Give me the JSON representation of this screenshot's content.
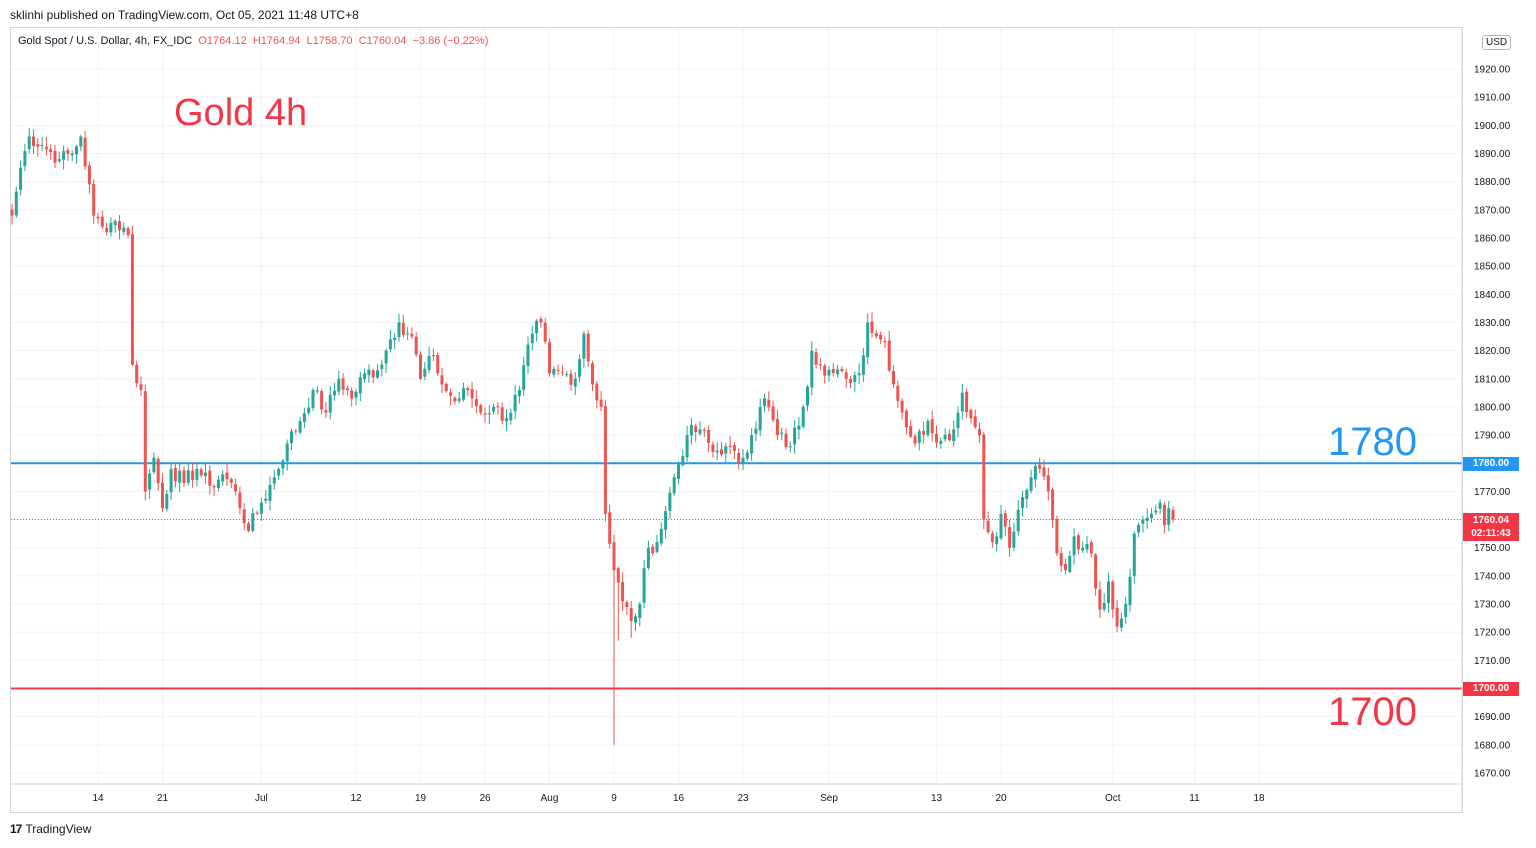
{
  "header": {
    "published": "sklinhi published on TradingView.com, Oct 05, 2021 11:48 UTC+8",
    "symbol": "Gold Spot / U.S. Dollar, 4h, FX_IDC",
    "open": "O1764.12",
    "high": "H1764.94",
    "low": "L1758.70",
    "close": "C1760.04",
    "change": "−3.86 (−0.22%)"
  },
  "currency_badge": "USD",
  "footer": {
    "brand": "TradingView"
  },
  "colors": {
    "up": "#26a69a",
    "down": "#ef5350",
    "resistance": "#2196f3",
    "support": "#f23645",
    "grid": "#f0f3fa"
  },
  "chart_data": {
    "type": "candlestick",
    "title": "Gold 4h",
    "ylim": [
      1665,
      1935
    ],
    "y_ticks": [
      "1920.00",
      "1910.00",
      "1900.00",
      "1890.00",
      "1880.00",
      "1870.00",
      "1860.00",
      "1850.00",
      "1840.00",
      "1830.00",
      "1820.00",
      "1810.00",
      "1800.00",
      "1790.00",
      "1780.00",
      "1770.00",
      "1760.00",
      "1750.00",
      "1740.00",
      "1730.00",
      "1720.00",
      "1710.00",
      "1700.00",
      "1690.00",
      "1680.00",
      "1670.00"
    ],
    "x_ticks": [
      {
        "label": "14",
        "bar": 20
      },
      {
        "label": "21",
        "bar": 35
      },
      {
        "label": "Jul",
        "bar": 58
      },
      {
        "label": "12",
        "bar": 80
      },
      {
        "label": "19",
        "bar": 95
      },
      {
        "label": "26",
        "bar": 110
      },
      {
        "label": "Aug",
        "bar": 125
      },
      {
        "label": "9",
        "bar": 140
      },
      {
        "label": "16",
        "bar": 155
      },
      {
        "label": "23",
        "bar": 170
      },
      {
        "label": "Sep",
        "bar": 190
      },
      {
        "label": "13",
        "bar": 215
      },
      {
        "label": "20",
        "bar": 230
      },
      {
        "label": "Oct",
        "bar": 256
      },
      {
        "label": "11",
        "bar": 275
      },
      {
        "label": "18",
        "bar": 290
      }
    ],
    "anchors": [
      [
        0,
        1868
      ],
      [
        2,
        1885
      ],
      [
        4,
        1896
      ],
      [
        7,
        1893
      ],
      [
        11,
        1888
      ],
      [
        14,
        1890
      ],
      [
        16,
        1896
      ],
      [
        19,
        1868
      ],
      [
        21,
        1864
      ],
      [
        24,
        1866
      ],
      [
        27,
        1861
      ],
      [
        28,
        1815
      ],
      [
        30,
        1806
      ],
      [
        31,
        1770
      ],
      [
        33,
        1782
      ],
      [
        35,
        1764
      ],
      [
        37,
        1778
      ],
      [
        40,
        1773
      ],
      [
        43,
        1778
      ],
      [
        46,
        1772
      ],
      [
        49,
        1776
      ],
      [
        52,
        1770
      ],
      [
        55,
        1756
      ],
      [
        58,
        1766
      ],
      [
        61,
        1775
      ],
      [
        64,
        1787
      ],
      [
        67,
        1795
      ],
      [
        70,
        1806
      ],
      [
        73,
        1798
      ],
      [
        76,
        1810
      ],
      [
        79,
        1803
      ],
      [
        82,
        1812
      ],
      [
        85,
        1813
      ],
      [
        88,
        1824
      ],
      [
        90,
        1830
      ],
      [
        93,
        1825
      ],
      [
        95,
        1810
      ],
      [
        98,
        1818
      ],
      [
        100,
        1808
      ],
      [
        103,
        1802
      ],
      [
        106,
        1806
      ],
      [
        109,
        1798
      ],
      [
        112,
        1800
      ],
      [
        115,
        1796
      ],
      [
        118,
        1806
      ],
      [
        121,
        1826
      ],
      [
        123,
        1830
      ],
      [
        125,
        1812
      ],
      [
        128,
        1812
      ],
      [
        131,
        1810
      ],
      [
        133,
        1826
      ],
      [
        135,
        1808
      ],
      [
        137,
        1800
      ],
      [
        138,
        1762
      ],
      [
        140,
        1742
      ],
      [
        142,
        1731
      ],
      [
        144,
        1724
      ],
      [
        146,
        1730
      ],
      [
        148,
        1750
      ],
      [
        150,
        1752
      ],
      [
        152,
        1763
      ],
      [
        154,
        1775
      ],
      [
        157,
        1790
      ],
      [
        160,
        1792
      ],
      [
        163,
        1784
      ],
      [
        166,
        1786
      ],
      [
        169,
        1780
      ],
      [
        172,
        1790
      ],
      [
        175,
        1803
      ],
      [
        178,
        1790
      ],
      [
        181,
        1786
      ],
      [
        184,
        1800
      ],
      [
        186,
        1820
      ],
      [
        188,
        1815
      ],
      [
        191,
        1812
      ],
      [
        194,
        1810
      ],
      [
        197,
        1812
      ],
      [
        199,
        1830
      ],
      [
        201,
        1825
      ],
      [
        203,
        1823
      ],
      [
        205,
        1808
      ],
      [
        207,
        1798
      ],
      [
        210,
        1787
      ],
      [
        213,
        1795
      ],
      [
        216,
        1788
      ],
      [
        219,
        1792
      ],
      [
        221,
        1805
      ],
      [
        223,
        1796
      ],
      [
        225,
        1790
      ],
      [
        226,
        1760
      ],
      [
        228,
        1752
      ],
      [
        230,
        1762
      ],
      [
        232,
        1750
      ],
      [
        235,
        1768
      ],
      [
        237,
        1775
      ],
      [
        239,
        1778
      ],
      [
        241,
        1770
      ],
      [
        243,
        1748
      ],
      [
        245,
        1742
      ],
      [
        247,
        1754
      ],
      [
        249,
        1750
      ],
      [
        251,
        1748
      ],
      [
        253,
        1728
      ],
      [
        255,
        1738
      ],
      [
        257,
        1722
      ],
      [
        259,
        1730
      ],
      [
        261,
        1755
      ],
      [
        263,
        1760
      ],
      [
        265,
        1762
      ],
      [
        267,
        1766
      ],
      [
        268,
        1758
      ],
      [
        269,
        1764
      ],
      [
        270,
        1760.04
      ]
    ],
    "spikes": [
      {
        "bar": 140,
        "low": 1680
      },
      {
        "bar": 141,
        "low": 1717
      },
      {
        "bar": 144,
        "low": 1718
      },
      {
        "bar": 257,
        "low": 1720
      }
    ],
    "lines": [
      {
        "value": 1780,
        "label": "1780",
        "tag": "1780.00",
        "color": "#2196f3"
      },
      {
        "value": 1700,
        "label": "1700",
        "tag": "1700.00",
        "color": "#f23645"
      }
    ],
    "last_price": {
      "value": 1760.04,
      "tag": "1760.04",
      "countdown": "02:11:43"
    }
  }
}
